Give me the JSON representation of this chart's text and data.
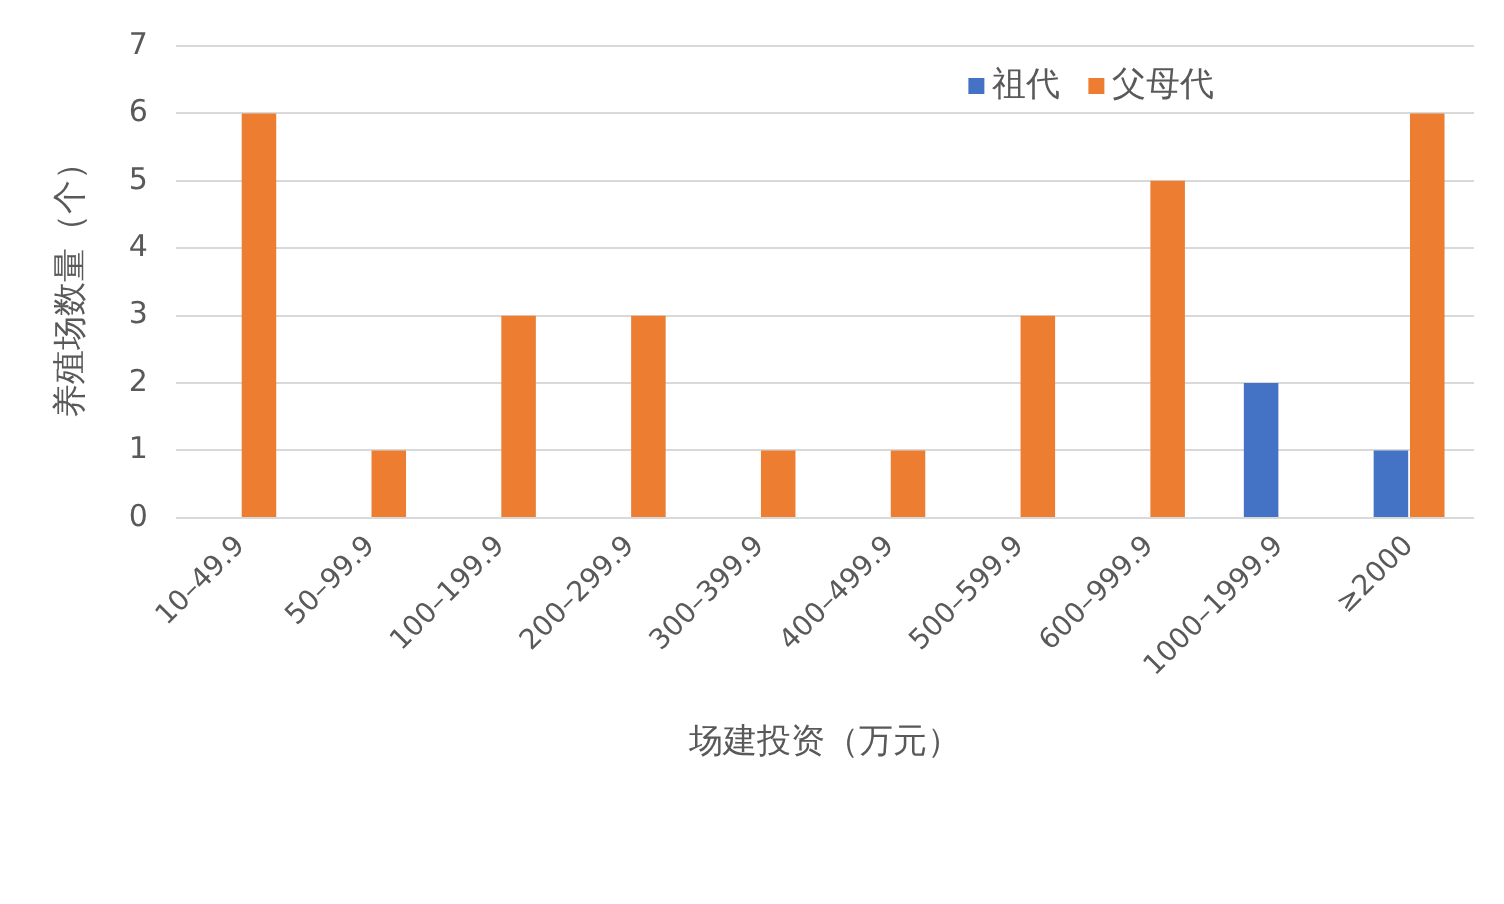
{
  "chart_data": {
    "type": "bar",
    "categories": [
      "10–49.9",
      "50–99.9",
      "100–199.9",
      "200–299.9",
      "300–399.9",
      "400–499.9",
      "500–599.9",
      "600–999.9",
      "1000–1999.9",
      "≥2000"
    ],
    "series": [
      {
        "name": "祖代",
        "color": "#4472c4",
        "values": [
          0,
          0,
          0,
          0,
          0,
          0,
          0,
          0,
          2,
          1
        ]
      },
      {
        "name": "父母代",
        "color": "#ed7d31",
        "values": [
          6,
          1,
          3,
          3,
          1,
          1,
          3,
          5,
          0,
          6
        ]
      }
    ],
    "xlabel": "场建投资（万元）",
    "ylabel": "养殖场数量（个）",
    "ylim": [
      0,
      7
    ],
    "yticks": [
      0,
      1,
      2,
      3,
      4,
      5,
      6,
      7
    ],
    "grid": "y",
    "legend": "top right"
  }
}
